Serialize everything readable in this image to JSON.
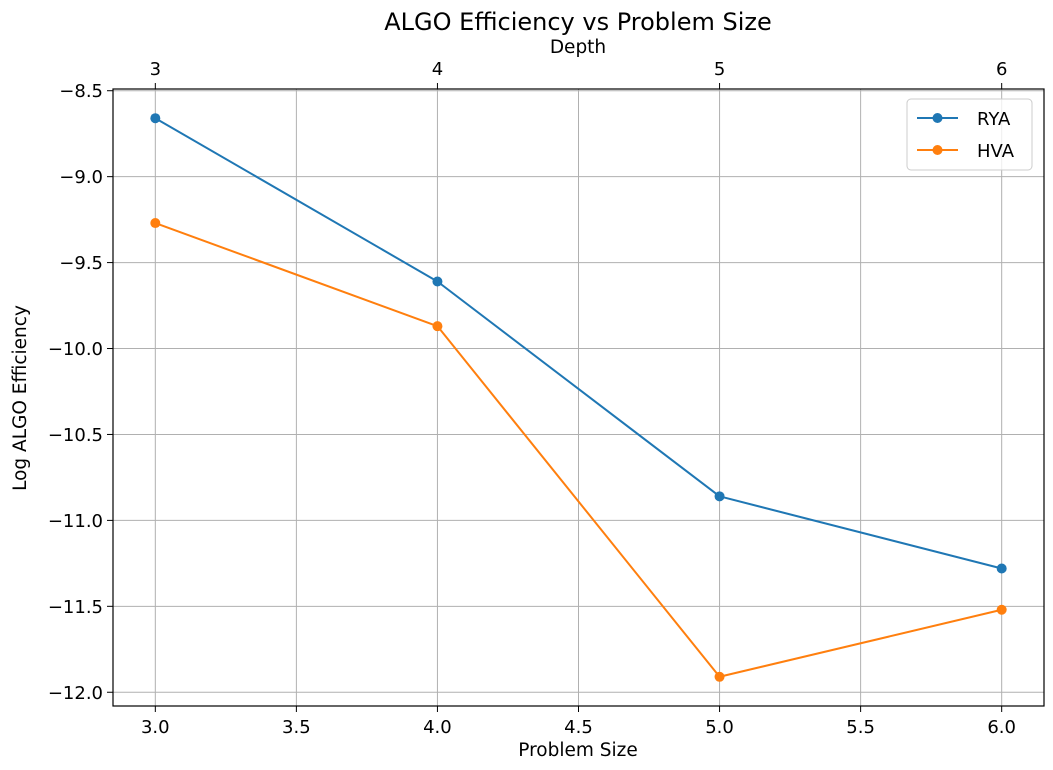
{
  "chart_data": {
    "type": "line",
    "title": "ALGO Efficiency vs Problem Size",
    "xlabel": "Problem Size",
    "ylabel": "Log ALGO Efficiency",
    "top_xlabel": "Depth",
    "xlim": [
      2.85,
      6.15
    ],
    "ylim": [
      -12.08,
      -8.49
    ],
    "xticks": [
      3.0,
      3.5,
      4.0,
      4.5,
      5.0,
      5.5,
      6.0
    ],
    "xtick_labels": [
      "3.0",
      "3.5",
      "4.0",
      "4.5",
      "5.0",
      "5.5",
      "6.0"
    ],
    "yticks": [
      -8.5,
      -9.0,
      -9.5,
      -10.0,
      -10.5,
      -11.0,
      -11.5,
      -12.0
    ],
    "ytick_labels": [
      "−8.5",
      "−9.0",
      "−9.5",
      "−10.0",
      "−10.5",
      "−11.0",
      "−11.5",
      "−12.0"
    ],
    "top_xticks": [
      3,
      4,
      5,
      6
    ],
    "top_xtick_labels": [
      "3",
      "4",
      "5",
      "6"
    ],
    "x": [
      3,
      4,
      5,
      6
    ],
    "series": [
      {
        "name": "RYA",
        "color": "#1f77b4",
        "values": [
          -8.66,
          -9.61,
          -10.86,
          -11.28
        ]
      },
      {
        "name": "HVA",
        "color": "#ff7f0e",
        "values": [
          -9.27,
          -9.87,
          -11.91,
          -11.52
        ]
      }
    ],
    "grid": true,
    "legend_position": "top-right"
  }
}
